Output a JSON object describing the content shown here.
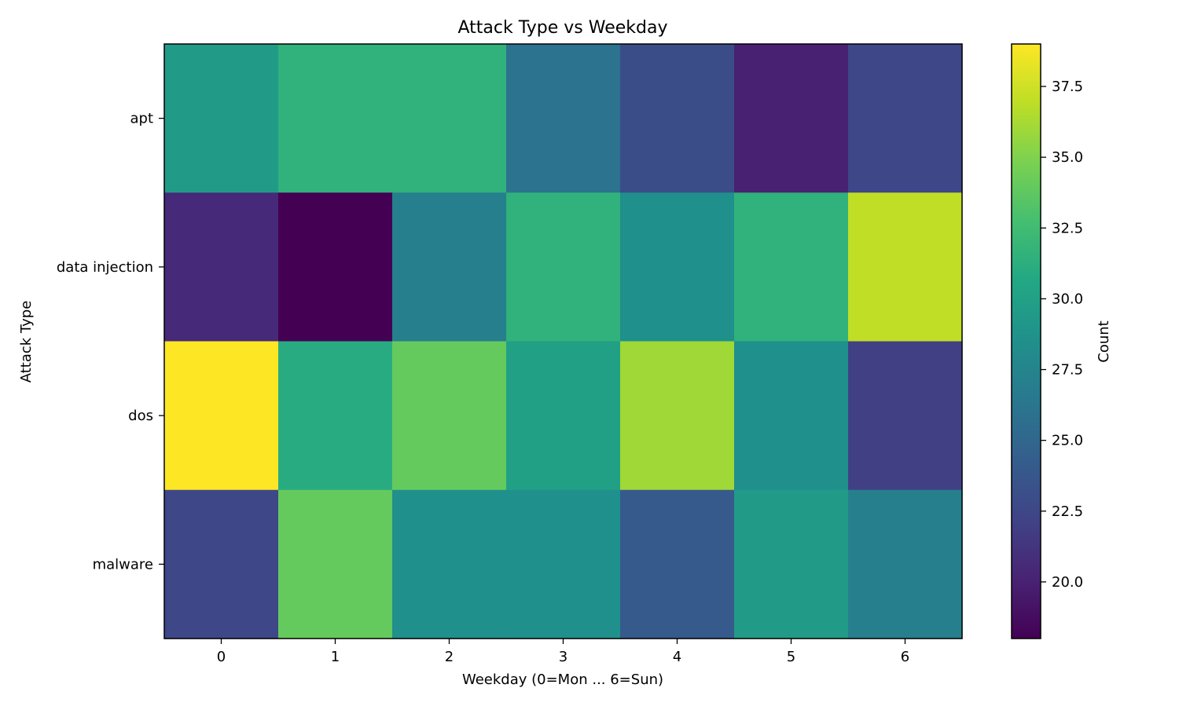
{
  "chart_data": {
    "type": "heatmap",
    "title": "Attack Type vs Weekday",
    "xlabel": "Weekday (0=Mon ... 6=Sun)",
    "ylabel": "Attack Type",
    "x_categories": [
      "0",
      "1",
      "2",
      "3",
      "4",
      "5",
      "6"
    ],
    "y_categories": [
      "apt",
      "data injection",
      "dos",
      "malware"
    ],
    "values": [
      [
        29.5,
        31.5,
        31.5,
        26.0,
        23.0,
        20.0,
        22.5
      ],
      [
        20.5,
        18.0,
        27.0,
        31.5,
        28.5,
        31.5,
        37.0
      ],
      [
        39.0,
        31.0,
        34.0,
        30.0,
        36.0,
        28.5,
        22.0
      ],
      [
        22.5,
        34.0,
        28.5,
        28.5,
        24.0,
        29.5,
        27.0
      ]
    ],
    "colorbar": {
      "label": "Count",
      "colormap": "viridis",
      "vmin": 18.0,
      "vmax": 39.0,
      "ticks": [
        20.0,
        22.5,
        25.0,
        27.5,
        30.0,
        32.5,
        35.0,
        37.5
      ],
      "tick_labels": [
        "20.0",
        "22.5",
        "25.0",
        "27.5",
        "30.0",
        "32.5",
        "35.0",
        "37.5"
      ]
    }
  }
}
